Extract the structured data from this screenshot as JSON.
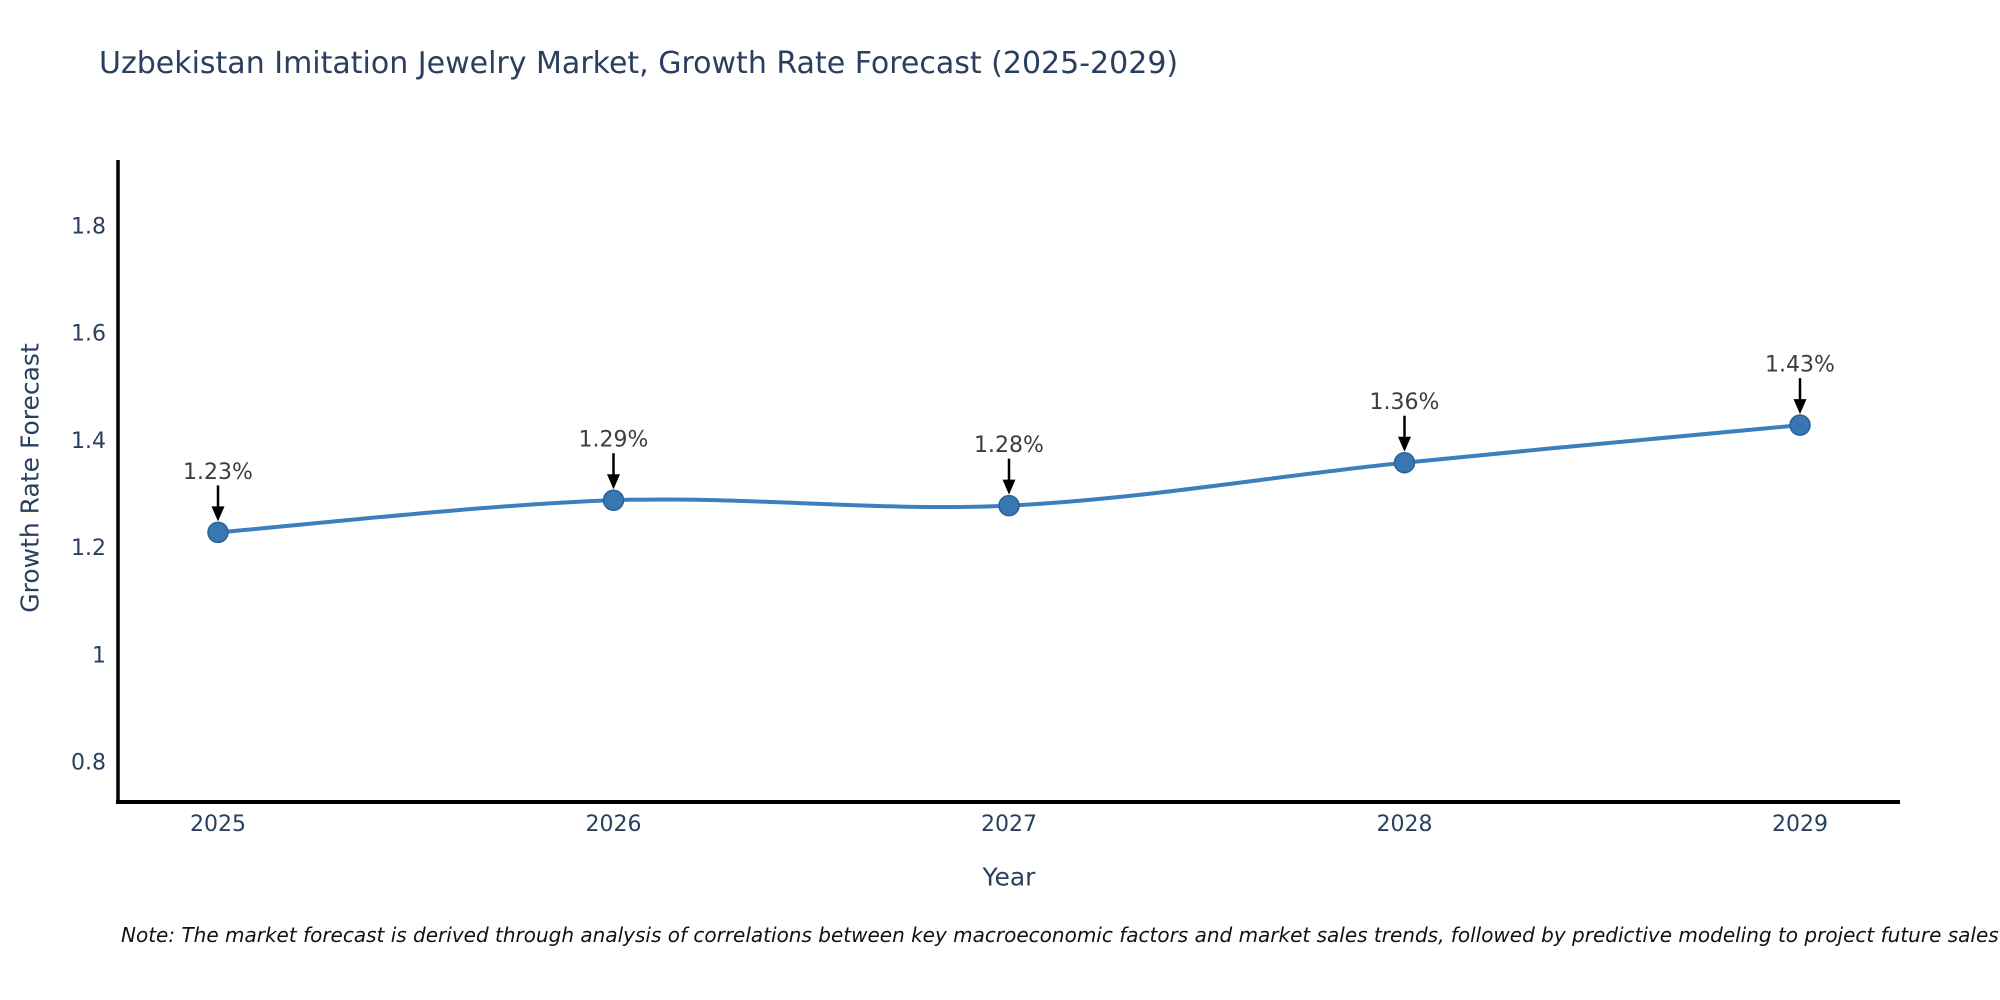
{
  "title": "Uzbekistan Imitation Jewelry Market, Growth Rate Forecast (2025-2029)",
  "note": "Note: The market forecast is derived through analysis of correlations between key macroeconomic factors and market sales trends, followed by predictive modeling to project future sales",
  "chart_data": {
    "type": "line",
    "title": "Uzbekistan Imitation Jewelry Market, Growth Rate Forecast (2025-2029)",
    "xlabel": "Year",
    "ylabel": "Growth Rate Forecast",
    "categories": [
      "2025",
      "2026",
      "2027",
      "2028",
      "2029"
    ],
    "values": [
      1.23,
      1.29,
      1.28,
      1.36,
      1.43
    ],
    "point_labels": [
      "1.23%",
      "1.29%",
      "1.28%",
      "1.36%",
      "1.43%"
    ],
    "yticks": [
      0.8,
      1,
      1.2,
      1.4,
      1.6,
      1.8
    ],
    "ytick_labels": [
      "0.8",
      "1",
      "1.2",
      "1.4",
      "1.6",
      "1.8"
    ],
    "ylim": [
      0.73,
      1.92
    ],
    "grid": false,
    "legend": "none",
    "line_smoothing": "spline",
    "annotation_style": "value label with downward black arrow to each marker",
    "colors": {
      "line": "#3d7ebd",
      "marker_fill": "#3876b4",
      "marker_edge": "#2d6195",
      "annotation_arrow": "#000000",
      "annotation_text": "#3d3d3d",
      "axis_line": "#000000",
      "tick_text": "#2a3f5f",
      "title_text": "#2a3f5f",
      "background": "#ffffff"
    }
  }
}
